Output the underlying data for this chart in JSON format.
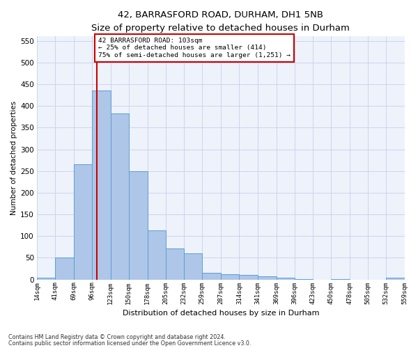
{
  "title_line1": "42, BARRASFORD ROAD, DURHAM, DH1 5NB",
  "title_line2": "Size of property relative to detached houses in Durham",
  "xlabel": "Distribution of detached houses by size in Durham",
  "ylabel": "Number of detached properties",
  "bar_edges": [
    14,
    41,
    69,
    96,
    123,
    150,
    178,
    205,
    232,
    259,
    287,
    314,
    341,
    369,
    396,
    423,
    450,
    478,
    505,
    532,
    559
  ],
  "bar_heights": [
    4,
    51,
    265,
    435,
    383,
    250,
    114,
    71,
    60,
    15,
    13,
    10,
    7,
    5,
    1,
    0,
    1,
    0,
    0,
    5
  ],
  "bar_color": "#aec6e8",
  "bar_edgecolor": "#5a9fd4",
  "property_value": 103,
  "vline_color": "#cc0000",
  "annotation_line1": "42 BARRASFORD ROAD: 103sqm",
  "annotation_line2": "← 25% of detached houses are smaller (414)",
  "annotation_line3": "75% of semi-detached houses are larger (1,251) →",
  "annotation_box_color": "#cc0000",
  "ylim": [
    0,
    560
  ],
  "yticks": [
    0,
    50,
    100,
    150,
    200,
    250,
    300,
    350,
    400,
    450,
    500,
    550
  ],
  "footer_line1": "Contains HM Land Registry data © Crown copyright and database right 2024.",
  "footer_line2": "Contains public sector information licensed under the Open Government Licence v3.0.",
  "background_color": "#eef2fb",
  "grid_color": "#c8d0e8",
  "title_fontsize": 9.5,
  "subtitle_fontsize": 8.5
}
